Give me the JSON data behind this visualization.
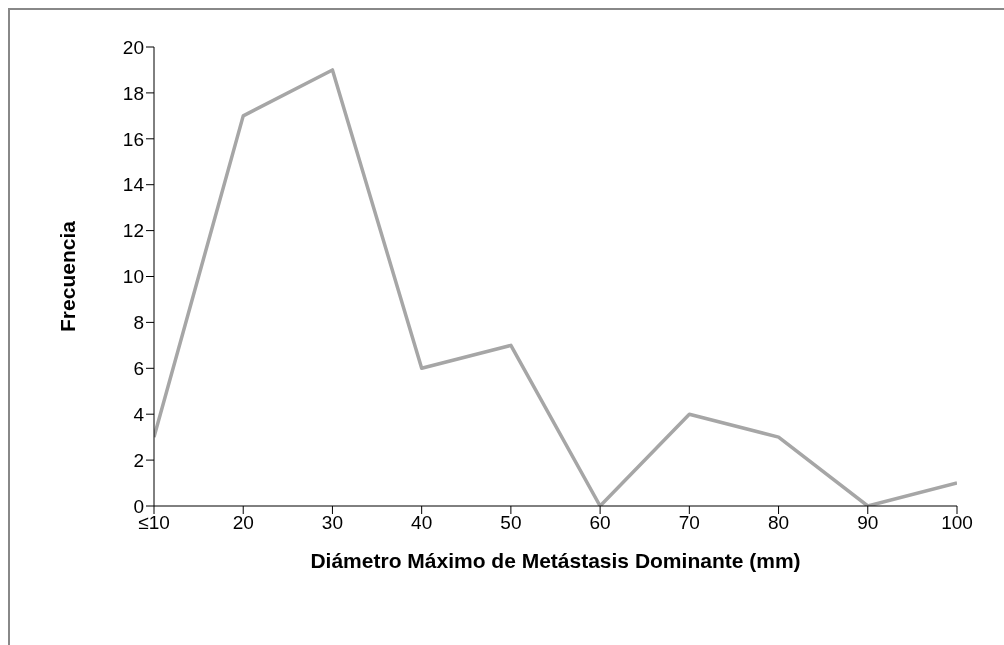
{
  "chart_data": {
    "type": "line",
    "xlabel": "Diámetro Máximo de Metástasis Dominante (mm)",
    "ylabel": "Frecuencia",
    "categories": [
      "≤10",
      "20",
      "30",
      "40",
      "50",
      "60",
      "70",
      "80",
      "90",
      "100"
    ],
    "series": [
      {
        "color": "#a6a6a6",
        "values": [
          3,
          17,
          19,
          6,
          7,
          0,
          4,
          3,
          0,
          1
        ]
      }
    ],
    "ylim": [
      0,
      20
    ],
    "yticks": [
      0,
      2,
      4,
      6,
      8,
      10,
      12,
      14,
      16,
      18,
      20
    ],
    "grid": false,
    "marker": "none",
    "line_style": "solid"
  }
}
